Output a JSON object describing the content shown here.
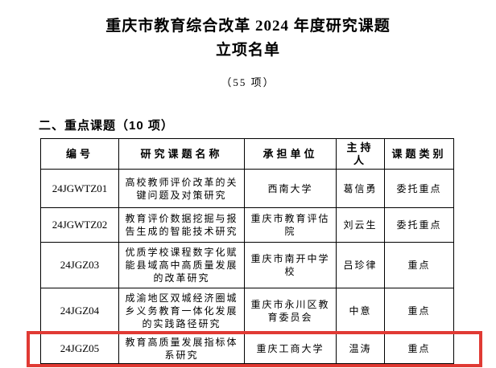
{
  "document": {
    "title_line1": "重庆市教育综合改革 2024 年度研究课题",
    "title_line2": "立项名单",
    "subtitle": "（55 项）",
    "section_heading": "二、重点课题（10 项）"
  },
  "table": {
    "headers": [
      "编号",
      "研究课题名称",
      "承担单位",
      "主持人",
      "课题类别"
    ],
    "rows": [
      {
        "id": "24JGWTZ01",
        "title": "高校教师评价改革的关键问题及对策研究",
        "org": "西南大学",
        "leader": "葛信勇",
        "category": "委托重点"
      },
      {
        "id": "24JGWTZ02",
        "title": "教育评价数据挖掘与报告生成的智能技术研究",
        "org": "重庆市教育评估院",
        "leader": "刘云生",
        "category": "委托重点"
      },
      {
        "id": "24JGZ03",
        "title": "优质学校课程数字化赋能县域高中高质量发展的改革研究",
        "org": "重庆市南开中学校",
        "leader": "吕珍律",
        "category": "重点"
      },
      {
        "id": "24JGZ04",
        "title": "成渝地区双城经济圈城乡义务教育一体化发展的实践路径研究",
        "org": "重庆市永川区教育委员会",
        "leader": "中意",
        "category": "重点"
      },
      {
        "id": "24JGZ05",
        "title": "教育高质量发展指标体系研究",
        "org": "重庆工商大学",
        "leader": "温涛",
        "category": "重点"
      }
    ]
  },
  "highlight": {
    "color": "#e03a34",
    "highlighted_row_id": "24JGZ05"
  }
}
